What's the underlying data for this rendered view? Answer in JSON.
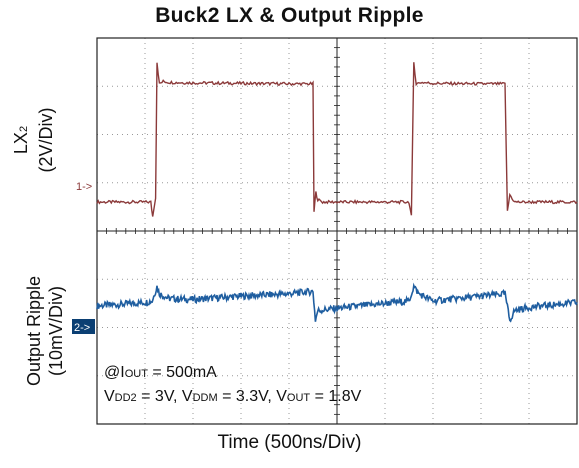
{
  "title": "Buck2 LX & Output Ripple",
  "x_axis_label": "Time (500ns/Div)",
  "channel1": {
    "label_main": "LX",
    "label_sub": "2",
    "label_scale": "(2V/Div)",
    "marker": "1->",
    "color": "#8b3a3a"
  },
  "channel2": {
    "label_main": "Output Ripple",
    "label_scale": "(10mV/Div)",
    "marker": "2->",
    "marker_bg": "#0b3f73",
    "color": "#1f5ea0"
  },
  "annotation": {
    "line1_prefix": "@I",
    "line1_sub": "OUT",
    "line1_suffix": " = 500mA",
    "line2_a": "V",
    "line2_a_sub": "DD2",
    "line2_b": " = 3V, V",
    "line2_b_sub": "DDM",
    "line2_c": " = 3.3V, V",
    "line2_c_sub": "OUT",
    "line2_d": " = 1.8V"
  },
  "chart_data": {
    "type": "line",
    "title": "Buck2 LX & Output Ripple",
    "xlabel": "Time (500ns/Div)",
    "x_unit": "div",
    "xlim": [
      0,
      10
    ],
    "ylim_div": [
      -4,
      4
    ],
    "grid": true,
    "series": [
      {
        "name": "LX2",
        "scale": "2V/Div",
        "offset_div": 0.6,
        "x": [
          0,
          1.12,
          1.16,
          1.22,
          1.25,
          1.3,
          1.38,
          1.5,
          2.0,
          3.0,
          4.0,
          4.5,
          4.52,
          4.56,
          4.6,
          4.7,
          5.0,
          6.0,
          6.5,
          6.55,
          6.6,
          6.65,
          6.75,
          7.0,
          8.0,
          8.5,
          8.55,
          8.6,
          8.7,
          8.9,
          9.2,
          10.0
        ],
        "values": [
          0,
          0,
          -0.3,
          0.1,
          2.9,
          2.45,
          2.5,
          2.48,
          2.47,
          2.46,
          2.45,
          2.45,
          -0.2,
          0.2,
          0.05,
          0,
          0,
          0,
          0,
          -0.3,
          2.9,
          2.45,
          2.48,
          2.46,
          2.45,
          2.45,
          -0.2,
          0.15,
          0,
          0,
          0,
          0
        ]
      },
      {
        "name": "Output Ripple",
        "scale": "10mV/Div",
        "offset_div": -1.6,
        "x": [
          0,
          0.5,
          1.0,
          1.15,
          1.25,
          1.3,
          1.5,
          2.0,
          3.0,
          4.0,
          4.5,
          4.55,
          4.6,
          5.0,
          6.0,
          6.5,
          6.6,
          6.7,
          7.0,
          8.0,
          8.5,
          8.6,
          8.7,
          9.0,
          10.0
        ],
        "values": [
          0.05,
          0.08,
          0.12,
          0.15,
          0.45,
          0.3,
          0.2,
          0.18,
          0.25,
          0.3,
          0.35,
          -0.25,
          -0.05,
          0.0,
          0.1,
          0.15,
          0.45,
          0.3,
          0.15,
          0.25,
          0.3,
          -0.25,
          -0.05,
          0.02,
          0.12
        ]
      }
    ]
  }
}
